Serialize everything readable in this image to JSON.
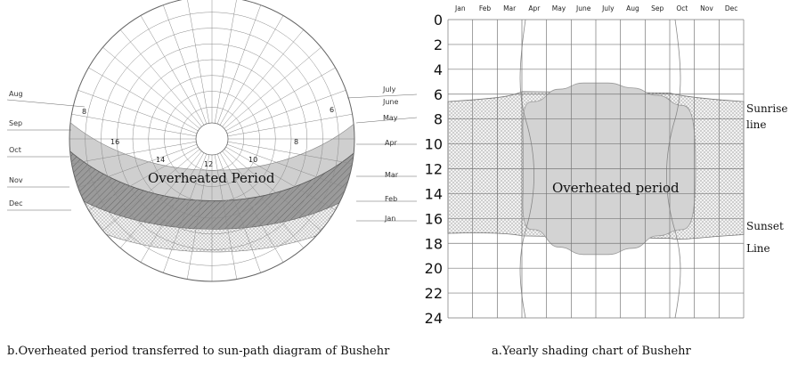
{
  "left_diagram": {
    "months_left": [
      "Aug",
      "Sep",
      "Oct",
      "Nov",
      "Dec"
    ],
    "months_right": [
      "July",
      "June",
      "May",
      "Apr",
      "Mar",
      "Feb",
      "Jan"
    ],
    "hours": [
      "8",
      "16",
      "14",
      "12",
      "10",
      "8",
      "6"
    ],
    "band_label": "Overheated Period",
    "caption": "b.Overheated period transferred to sun-path diagram of Bushehr"
  },
  "right_chart": {
    "months": [
      "Jan",
      "Feb",
      "Mar",
      "Apr",
      "May",
      "June",
      "July",
      "Aug",
      "Sep",
      "Oct",
      "Nov",
      "Dec"
    ],
    "hours": [
      "0",
      "2",
      "4",
      "6",
      "8",
      "10",
      "12",
      "14",
      "16",
      "18",
      "20",
      "22",
      "24"
    ],
    "region_label": "Overheated period",
    "sunrise_label_1": "Sunrise",
    "sunrise_label_2": "line",
    "sunset_label_1": "Sunset",
    "sunset_label_2": "Line",
    "caption": "a.Yearly shading chart of Bushehr",
    "chart_data": {
      "type": "area",
      "x": [
        "Jan",
        "Feb",
        "Mar",
        "Apr",
        "May",
        "June",
        "July",
        "Aug",
        "Sep",
        "Oct",
        "Nov",
        "Dec"
      ],
      "ylim": [
        0,
        24
      ],
      "overheated_start_hour": [
        null,
        null,
        null,
        6.6,
        5.6,
        5.1,
        5.1,
        5.5,
        6.1,
        6.9,
        null,
        null
      ],
      "overheated_end_hour": [
        null,
        null,
        null,
        16.9,
        18.3,
        18.9,
        18.9,
        18.4,
        17.4,
        16.9,
        null,
        null
      ]
    }
  }
}
